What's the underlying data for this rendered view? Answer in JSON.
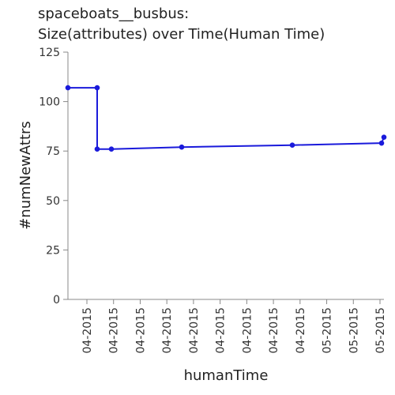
{
  "chart_data": {
    "type": "line",
    "title": "spaceboats__busbus:",
    "subtitle": "Size(attributes) over Time(Human Time)",
    "xlabel": "humanTime",
    "ylabel": "#numNewAttrs",
    "ylim": [
      0,
      125
    ],
    "y_ticks": [
      0,
      25,
      50,
      75,
      100,
      125
    ],
    "x_tick_labels": [
      "04-2015",
      "04-2015",
      "04-2015",
      "04-2015",
      "04-2015",
      "04-2015",
      "04-2015",
      "04-2015",
      "04-2015",
      "05-2015",
      "05-2015",
      "05-2015"
    ],
    "grid": false,
    "legend": "none",
    "colors": {
      "series": "#1a1adb",
      "axis": "#888888"
    },
    "series": [
      {
        "values": [
          107,
          107,
          76,
          76,
          77,
          78,
          79,
          82
        ]
      }
    ]
  }
}
